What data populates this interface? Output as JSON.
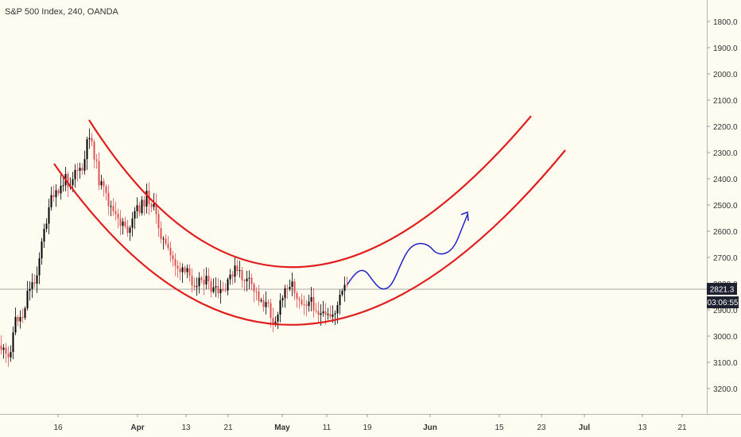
{
  "chart_data": {
    "type": "candlestick",
    "title": "S&P 500 Index, 240, OANDA",
    "y_axis": {
      "inverted": true,
      "ticks": [
        1800.0,
        1900.0,
        2000.0,
        2100.0,
        2200.0,
        2300.0,
        2400.0,
        2500.0,
        2600.0,
        2700.0,
        2800.0,
        2900.0,
        3000.0,
        3100.0,
        3200.0
      ],
      "tick_labels": [
        "1800.0",
        "1900.0",
        "2000.0",
        "2100.0",
        "2200.0",
        "2300.0",
        "2400.0",
        "2500.0",
        "2600.0",
        "2700.0",
        "2800.0",
        "2900.0",
        "3000.0",
        "3100.0",
        "3200.0"
      ]
    },
    "x_axis": {
      "tick_labels": [
        "16",
        "Apr",
        "13",
        "21",
        "May",
        "11",
        "19",
        "Jun",
        "15",
        "23",
        "Jul",
        "13",
        "21"
      ],
      "bold_labels": [
        "Apr",
        "May",
        "Jun",
        "Jul"
      ]
    },
    "last_price": {
      "value": 2821.3,
      "label": "2821.3"
    },
    "countdown": "03:06:55",
    "colors": {
      "background": "#fefcf0",
      "up_candle": "#000000",
      "down_candle": "#e05050",
      "channel": "#e01e1e",
      "projection": "#2020c8",
      "price_label_bg": "#1e2230"
    },
    "annotations": [
      "parabolic channel (red curves)",
      "projected price path (blue wave with arrow)"
    ]
  }
}
